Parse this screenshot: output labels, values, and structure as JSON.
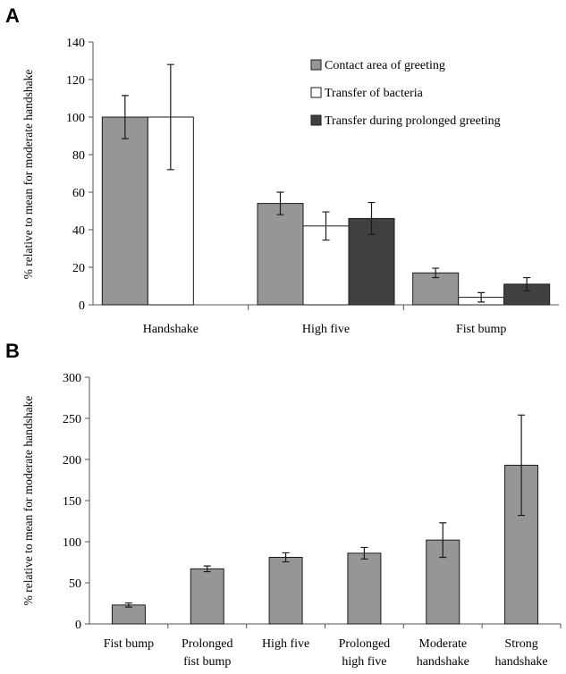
{
  "chart_data": [
    {
      "panel": "A",
      "type": "bar",
      "ylabel": "% relative to mean for moderate handshake",
      "ylim": [
        0,
        140
      ],
      "yticks": [
        0,
        20,
        40,
        60,
        80,
        100,
        120,
        140
      ],
      "categories": [
        "Handshake",
        "High five",
        "Fist bump"
      ],
      "legend_position": "top-right",
      "series": [
        {
          "name": "Contact area of greeting",
          "color": "#969696",
          "values": [
            100,
            54,
            17
          ],
          "errors": [
            11.5,
            6,
            2.5
          ]
        },
        {
          "name": "Transfer of bacteria",
          "color": "#ffffff",
          "values": [
            100,
            42,
            4
          ],
          "errors": [
            28,
            7.5,
            2.5
          ]
        },
        {
          "name": "Transfer during prolonged greeting",
          "color": "#404040",
          "values": [
            null,
            46,
            11
          ],
          "errors": [
            null,
            8.5,
            3.5
          ]
        }
      ]
    },
    {
      "panel": "B",
      "type": "bar",
      "ylabel": "% relative to mean for moderate handshake",
      "ylim": [
        0,
        300
      ],
      "yticks": [
        0,
        50,
        100,
        150,
        200,
        250,
        300
      ],
      "categories": [
        [
          "Fist bump"
        ],
        [
          "Prolonged",
          "fist bump"
        ],
        [
          "High five"
        ],
        [
          "Prolonged",
          "high five"
        ],
        [
          "Moderate",
          "handshake"
        ],
        [
          "Strong",
          "handshake"
        ]
      ],
      "series": [
        {
          "color": "#969696",
          "values": [
            23,
            67,
            81,
            86,
            102,
            193
          ],
          "errors": [
            2.5,
            3.5,
            5.5,
            7,
            21,
            61
          ]
        }
      ]
    }
  ]
}
